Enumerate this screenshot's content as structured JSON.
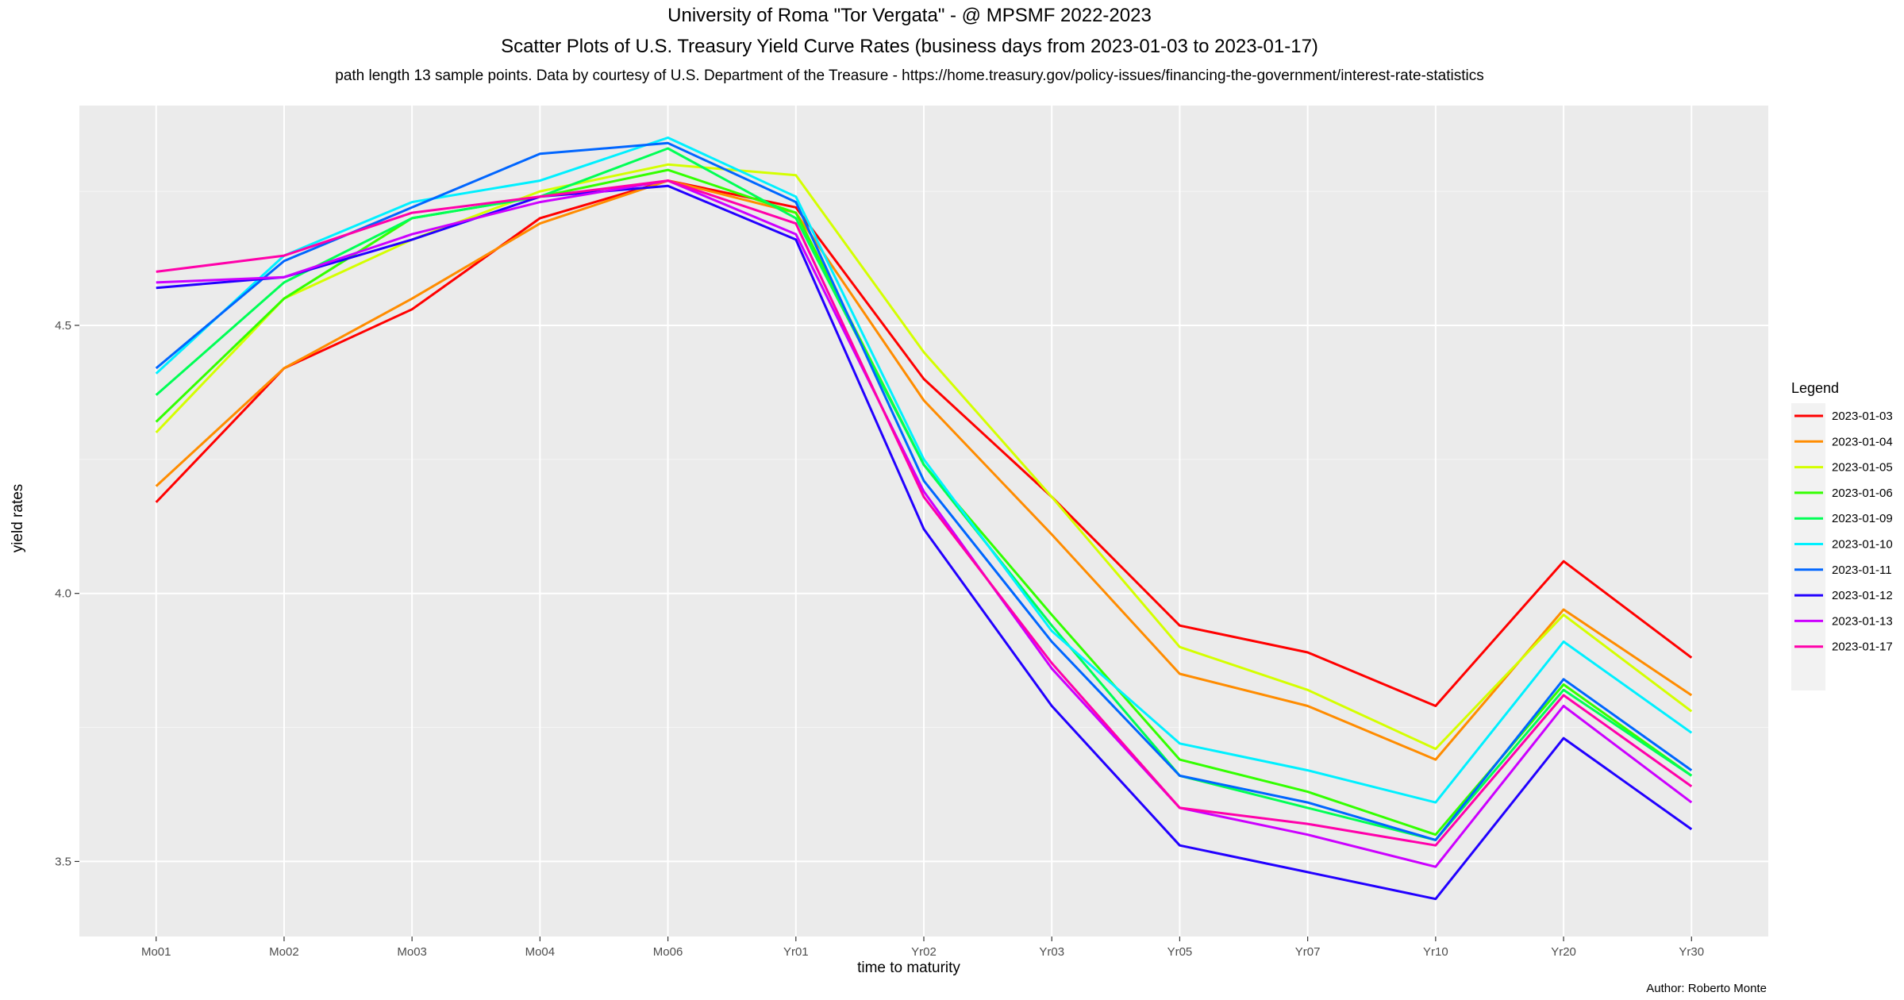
{
  "chart_data": {
    "type": "line",
    "title": "University of Roma \"Tor Vergata\" - @ MPSMF 2022-2023",
    "subtitle": "Scatter Plots of U.S. Treasury Yield Curve Rates (business days from 2023-01-03 to 2023-01-17)",
    "subtitle2": "path length 13 sample points. Data by courtesy of  U.S. Department of the Treasure  -  https://home.treasury.gov/policy-issues/financing-the-government/interest-rate-statistics",
    "xlabel": "time to maturity",
    "ylabel": "yield rates",
    "caption": "Author: Roberto Monte",
    "legend_title": "Legend",
    "legend_position": "right",
    "grid": true,
    "ylim": [
      3.36,
      4.91
    ],
    "yticks": [
      3.5,
      4.0,
      4.5
    ],
    "ytick_labels": [
      "3.5",
      "4.0",
      "4.5"
    ],
    "categories": [
      "Mo01",
      "Mo02",
      "Mo03",
      "Mo04",
      "Mo06",
      "Yr01",
      "Yr02",
      "Yr03",
      "Yr05",
      "Yr07",
      "Yr10",
      "Yr20",
      "Yr30"
    ],
    "series": [
      {
        "name": "2023-01-03",
        "color": "#ff0000",
        "values": [
          4.17,
          4.42,
          4.53,
          4.7,
          4.77,
          4.72,
          4.4,
          4.18,
          3.94,
          3.89,
          3.79,
          4.06,
          3.88
        ]
      },
      {
        "name": "2023-01-04",
        "color": "#ff8c00",
        "values": [
          4.2,
          4.42,
          4.55,
          4.69,
          4.77,
          4.71,
          4.36,
          4.11,
          3.85,
          3.79,
          3.69,
          3.97,
          3.81
        ]
      },
      {
        "name": "2023-01-05",
        "color": "#d4ff00",
        "values": [
          4.3,
          4.55,
          4.66,
          4.75,
          4.8,
          4.78,
          4.45,
          4.18,
          3.9,
          3.82,
          3.71,
          3.96,
          3.78
        ]
      },
      {
        "name": "2023-01-06",
        "color": "#33ff00",
        "values": [
          4.32,
          4.55,
          4.7,
          4.74,
          4.79,
          4.71,
          4.24,
          3.96,
          3.69,
          3.63,
          3.55,
          3.83,
          3.66
        ]
      },
      {
        "name": "2023-01-09",
        "color": "#00ff55",
        "values": [
          4.37,
          4.58,
          4.7,
          4.74,
          4.83,
          4.7,
          4.24,
          3.94,
          3.66,
          3.6,
          3.54,
          3.82,
          3.66
        ]
      },
      {
        "name": "2023-01-10",
        "color": "#00f0ff",
        "values": [
          4.41,
          4.63,
          4.73,
          4.77,
          4.85,
          4.74,
          4.25,
          3.93,
          3.72,
          3.67,
          3.61,
          3.91,
          3.74
        ]
      },
      {
        "name": "2023-01-11",
        "color": "#0066ff",
        "values": [
          4.42,
          4.62,
          4.72,
          4.82,
          4.84,
          4.73,
          4.21,
          3.91,
          3.66,
          3.61,
          3.54,
          3.84,
          3.67
        ]
      },
      {
        "name": "2023-01-12",
        "color": "#2200ff",
        "values": [
          4.57,
          4.59,
          4.66,
          4.74,
          4.76,
          4.66,
          4.12,
          3.79,
          3.53,
          3.48,
          3.43,
          3.73,
          3.56
        ]
      },
      {
        "name": "2023-01-13",
        "color": "#cc00ff",
        "values": [
          4.58,
          4.59,
          4.67,
          4.73,
          4.77,
          4.67,
          4.19,
          3.86,
          3.6,
          3.55,
          3.49,
          3.79,
          3.61
        ]
      },
      {
        "name": "2023-01-17",
        "color": "#ff00aa",
        "values": [
          4.6,
          4.63,
          4.71,
          4.74,
          4.77,
          4.69,
          4.18,
          3.87,
          3.6,
          3.57,
          3.53,
          3.81,
          3.64
        ]
      }
    ]
  }
}
